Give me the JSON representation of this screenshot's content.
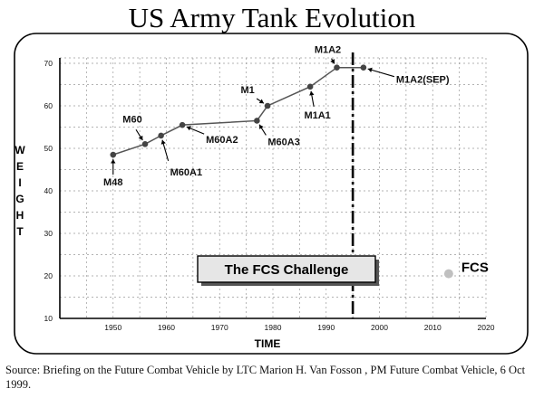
{
  "chart_data": {
    "type": "line",
    "title": "US Army Tank Evolution",
    "xlabel": "TIME",
    "ylabel": "WEIGHT",
    "xlim": [
      1940,
      2020
    ],
    "ylim": [
      10,
      70
    ],
    "xticks": [
      1950,
      1960,
      1970,
      1980,
      1990,
      2000,
      2010,
      2020
    ],
    "yticks": [
      10,
      20,
      30,
      40,
      50,
      60,
      70
    ],
    "grid": true,
    "series": [
      {
        "points": [
          {
            "x": 1950,
            "y": 48.5,
            "label": "M48"
          },
          {
            "x": 1956,
            "y": 51,
            "label": "M60"
          },
          {
            "x": 1959,
            "y": 53,
            "label": "M60A1"
          },
          {
            "x": 1963,
            "y": 55.5,
            "label": "M60A2"
          },
          {
            "x": 1977,
            "y": 56.5,
            "label": "M60A3"
          },
          {
            "x": 1979,
            "y": 60,
            "label": "M1"
          },
          {
            "x": 1987,
            "y": 64.5,
            "label": "M1A1"
          },
          {
            "x": 1992,
            "y": 69,
            "label": "M1A2"
          },
          {
            "x": 1997,
            "y": 69,
            "label": "M1A2(SEP)"
          }
        ]
      }
    ],
    "future_point": {
      "x": 2013,
      "y": 20.5,
      "label": "FCS"
    },
    "divider_year": 1995,
    "callout": "The FCS Challenge",
    "colors": {
      "line": "#555555",
      "marker": "#444444",
      "future_marker": "#c0c0c0",
      "grid": "#9a9a9a"
    }
  },
  "source_note": "Source:  Briefing on the Future Combat Vehicle by LTC Marion H. Van Fosson , PM Future Combat Vehicle, 6 Oct 1999."
}
